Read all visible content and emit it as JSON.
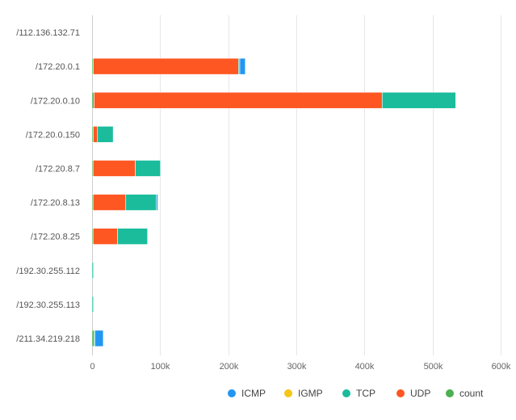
{
  "chart_data": {
    "type": "bar",
    "orientation": "horizontal",
    "stacked": true,
    "categories": [
      "/112.136.132.71",
      "/172.20.0.1",
      "/172.20.0.10",
      "/172.20.0.150",
      "/172.20.8.7",
      "/172.20.8.13",
      "/172.20.8.25",
      "/192.30.255.112",
      "/192.30.255.113",
      "/211.34.219.218"
    ],
    "series": [
      {
        "name": "count",
        "color": "#4caf50",
        "values": [
          0,
          2000,
          3000,
          2000,
          1500,
          1500,
          1500,
          0,
          0,
          3000
        ]
      },
      {
        "name": "UDP",
        "color": "#ff5722",
        "values": [
          0,
          213000,
          423000,
          6000,
          62000,
          48000,
          36000,
          0,
          0,
          0
        ]
      },
      {
        "name": "TCP",
        "color": "#1abc9c",
        "values": [
          0,
          2000,
          108000,
          23000,
          37000,
          45000,
          44000,
          2000,
          2000,
          1500
        ]
      },
      {
        "name": "IGMP",
        "color": "#f5c518",
        "values": [
          0,
          0,
          0,
          0,
          0,
          0,
          0,
          0,
          0,
          0
        ]
      },
      {
        "name": "ICMP",
        "color": "#2196f3",
        "values": [
          0,
          8000,
          0,
          0,
          0,
          2000,
          0,
          0,
          0,
          12000
        ]
      }
    ],
    "legend": [
      "ICMP",
      "IGMP",
      "TCP",
      "UDP",
      "count"
    ],
    "legend_position": "bottom-right",
    "x_ticks": [
      "0",
      "100k",
      "200k",
      "300k",
      "400k",
      "500k",
      "600k"
    ],
    "xlim": [
      0,
      600000
    ],
    "grid": true,
    "title": "",
    "xlabel": "",
    "ylabel": ""
  }
}
